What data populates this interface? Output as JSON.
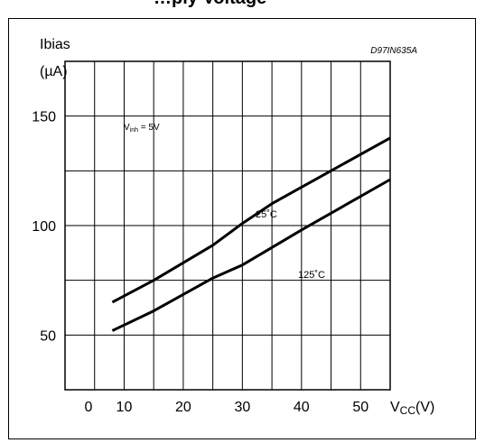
{
  "header": {
    "caption": "…ply Voltage"
  },
  "chart_data": {
    "type": "line",
    "figure_id": "D97IN635A",
    "ylabel": "Ibias",
    "yunit": "(µA)",
    "xlabel": "V",
    "xlabel_sub": "CC",
    "xunit": "(V)",
    "note": {
      "main": "V",
      "sub": "inh",
      "rest": " = 5V"
    },
    "xlim": [
      0,
      55
    ],
    "ylim": [
      25,
      175
    ],
    "grid": true,
    "x_ticks": [
      0,
      10,
      20,
      30,
      40,
      50
    ],
    "y_ticks": [
      50,
      100,
      150
    ],
    "series": [
      {
        "name": "25˚C",
        "x": [
          8,
          15,
          25,
          30,
          35,
          45,
          55
        ],
        "y": [
          65,
          75,
          91,
          101,
          110,
          125,
          140
        ]
      },
      {
        "name": "125˚C",
        "x": [
          8,
          15,
          25,
          30,
          35,
          40,
          55
        ],
        "y": [
          52,
          61,
          76,
          82,
          90,
          98,
          121
        ]
      }
    ]
  }
}
